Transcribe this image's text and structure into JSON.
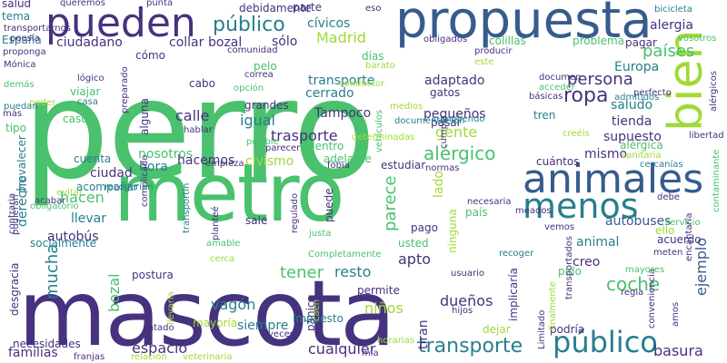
{
  "palette": {
    "background": "#ffffff",
    "purple": "#46327e",
    "teal": "#277f8e",
    "green": "#4ac16d",
    "lime": "#a0da39",
    "blue": "#365c8d"
  },
  "words": [
    {
      "text": "perro",
      "color": "#4ac16d"
    },
    {
      "text": "mascota",
      "color": "#46327e"
    },
    {
      "text": "metro",
      "color": "#4ac16d"
    },
    {
      "text": "propuesta",
      "color": "#365c8d"
    },
    {
      "text": "pueden",
      "color": "#46327e"
    },
    {
      "text": "animales",
      "color": "#365c8d"
    },
    {
      "text": "menos",
      "color": "#277f8e"
    },
    {
      "text": "bien",
      "color": "#a0da39"
    },
    {
      "text": "transporte",
      "color": "#277f8e"
    },
    {
      "text": "público",
      "color": "#277f8e"
    },
    {
      "text": "público",
      "color": "#277f8e"
    },
    {
      "text": "ciudadano",
      "color": "#46327e"
    },
    {
      "text": "collar",
      "color": "#46327e"
    },
    {
      "text": "bozal",
      "color": "#46327e"
    },
    {
      "text": "sólo",
      "color": "#46327e"
    },
    {
      "text": "cívicos",
      "color": "#277f8e"
    },
    {
      "text": "Madrid",
      "color": "#a0da39"
    },
    {
      "text": "países",
      "color": "#4ac16d"
    },
    {
      "text": "alergia",
      "color": "#46327e"
    },
    {
      "text": "bicicleta",
      "color": "#277f8e"
    },
    {
      "text": "ropa",
      "color": "#46327e"
    },
    {
      "text": "persona",
      "color": "#46327e"
    },
    {
      "text": "Europa",
      "color": "#277f8e"
    },
    {
      "text": "saludo",
      "color": "#277f8e"
    },
    {
      "text": "tienda",
      "color": "#46327e"
    },
    {
      "text": "supuesto",
      "color": "#46327e"
    },
    {
      "text": "mismo",
      "color": "#46327e"
    },
    {
      "text": "alérgica",
      "color": "#4ac16d"
    },
    {
      "text": "adaptado",
      "color": "#46327e"
    },
    {
      "text": "cerrado",
      "color": "#277f8e"
    },
    {
      "text": "calle",
      "color": "#46327e"
    },
    {
      "text": "igual",
      "color": "#277f8e"
    },
    {
      "text": "pequeños",
      "color": "#46327e"
    },
    {
      "text": "gente",
      "color": "#a0da39"
    },
    {
      "text": "trasporte",
      "color": "#46327e"
    },
    {
      "text": "alérgico",
      "color": "#4ac16d"
    },
    {
      "text": "civismo",
      "color": "#a0da39"
    },
    {
      "text": "hora",
      "color": "#277f8e"
    },
    {
      "text": "ciudad",
      "color": "#46327e"
    },
    {
      "text": "hacen",
      "color": "#4ac16d"
    },
    {
      "text": "llevar",
      "color": "#277f8e"
    },
    {
      "text": "autobús",
      "color": "#46327e"
    },
    {
      "text": "derecho",
      "color": "#277f8e"
    },
    {
      "text": "mucha",
      "color": "#277f8e"
    },
    {
      "text": "parece",
      "color": "#4ac16d"
    },
    {
      "text": "lado",
      "color": "#a0da39"
    },
    {
      "text": "ninguna",
      "color": "#a0da39"
    },
    {
      "text": "país",
      "color": "#4ac16d"
    },
    {
      "text": "animal",
      "color": "#277f8e"
    },
    {
      "text": "creo",
      "color": "#46327e"
    },
    {
      "text": "autobuses",
      "color": "#365c8d"
    },
    {
      "text": "ello",
      "color": "#a0da39"
    },
    {
      "text": "coche",
      "color": "#4ac16d"
    },
    {
      "text": "ejemplo",
      "color": "#365c8d"
    },
    {
      "text": "tener",
      "color": "#4ac16d"
    },
    {
      "text": "resto",
      "color": "#277f8e"
    },
    {
      "text": "apto",
      "color": "#46327e"
    },
    {
      "text": "vagón",
      "color": "#277f8e"
    },
    {
      "text": "niños",
      "color": "#a0da39"
    },
    {
      "text": "dueños",
      "color": "#46327e"
    },
    {
      "text": "espacio",
      "color": "#46327e"
    },
    {
      "text": "siempre",
      "color": "#277f8e"
    },
    {
      "text": "cualquier",
      "color": "#46327e"
    },
    {
      "text": "basura",
      "color": "#46327e"
    },
    {
      "text": "familias",
      "color": "#46327e"
    },
    {
      "text": "necesidades",
      "color": "#46327e"
    },
    {
      "text": "bozal",
      "color": "#4ac16d"
    },
    {
      "text": "postura",
      "color": "#46327e"
    },
    {
      "text": "tiran",
      "color": "#46327e"
    },
    {
      "text": "implicaría",
      "color": "#46327e"
    },
    {
      "text": "podría",
      "color": "#46327e"
    },
    {
      "text": "Tampoco",
      "color": "#46327e"
    },
    {
      "text": "nosotros",
      "color": "#4ac16d"
    },
    {
      "text": "hacemos",
      "color": "#46327e"
    },
    {
      "text": "cuenta",
      "color": "#277f8e"
    },
    {
      "text": "acompañar",
      "color": "#277f8e"
    },
    {
      "text": "socialmente",
      "color": "#277f8e"
    },
    {
      "text": "caso",
      "color": "#4ac16d"
    },
    {
      "text": "tipo",
      "color": "#4ac16d"
    },
    {
      "text": "viajar",
      "color": "#4ac16d"
    },
    {
      "text": "cabo",
      "color": "#46327e"
    },
    {
      "text": "cómo",
      "color": "#46327e"
    },
    {
      "text": "pelo",
      "color": "#4ac16d"
    },
    {
      "text": "días",
      "color": "#4ac16d"
    },
    {
      "text": "transporte",
      "color": "#277f8e"
    },
    {
      "text": "pagar",
      "color": "#46327e"
    },
    {
      "text": "problema",
      "color": "#4ac16d"
    },
    {
      "text": "colillas",
      "color": "#4ac16d"
    },
    {
      "text": "parte",
      "color": "#46327e"
    },
    {
      "text": "debidamente",
      "color": "#46327e"
    },
    {
      "text": "salud",
      "color": "#46327e"
    },
    {
      "text": "tema",
      "color": "#277f8e"
    },
    {
      "text": "España",
      "color": "#277f8e"
    },
    {
      "text": "eso",
      "color": "#46327e"
    },
    {
      "text": "sale",
      "color": "#46327e"
    },
    {
      "text": "pago",
      "color": "#46327e"
    },
    {
      "text": "puede",
      "color": "#46327e"
    },
    {
      "text": "usted",
      "color": "#4ac16d"
    },
    {
      "text": "permite",
      "color": "#46327e"
    },
    {
      "text": "pánico",
      "color": "#46327e"
    },
    {
      "text": "desgracia",
      "color": "#46327e"
    },
    {
      "text": "prevalecer",
      "color": "#277f8e"
    },
    {
      "text": "impuesto",
      "color": "#277f8e"
    },
    {
      "text": "mayoría",
      "color": "#a0da39"
    },
    {
      "text": "dejar",
      "color": "#a0da39"
    },
    {
      "text": "pasar",
      "color": "#46327e"
    },
    {
      "text": "tren",
      "color": "#277f8e"
    },
    {
      "text": "gatos",
      "color": "#46327e"
    },
    {
      "text": "dentro",
      "color": "#4ac16d"
    },
    {
      "text": "adelante",
      "color": "#4ac16d"
    },
    {
      "text": "estudiar",
      "color": "#46327e"
    },
    {
      "text": "cuántos",
      "color": "#46327e"
    },
    {
      "text": "grandes",
      "color": "#46327e"
    },
    {
      "text": "hablar",
      "color": "#46327e"
    },
    {
      "text": "alguna",
      "color": "#46327e"
    },
    {
      "text": "posible",
      "color": "#4ac16d"
    },
    {
      "text": "cumpla",
      "color": "#46327e"
    },
    {
      "text": "cumpliendo",
      "color": "#277f8e"
    },
    {
      "text": "acuerdo",
      "color": "#46327e"
    },
    {
      "text": "servicio",
      "color": "#4ac16d"
    },
    {
      "text": "debe",
      "color": "#46327e"
    },
    {
      "text": "pido",
      "color": "#4ac16d"
    },
    {
      "text": "transportados",
      "color": "#46327e"
    },
    {
      "text": "recoger",
      "color": "#277f8e"
    },
    {
      "text": "usuario",
      "color": "#46327e"
    },
    {
      "text": "hijos",
      "color": "#46327e"
    },
    {
      "text": "regla",
      "color": "#46327e"
    },
    {
      "text": "conveniencia",
      "color": "#46327e"
    },
    {
      "text": "atado",
      "color": "#46327e"
    },
    {
      "text": "veces",
      "color": "#46327e"
    },
    {
      "text": "franjas",
      "color": "#46327e"
    },
    {
      "text": "relación",
      "color": "#a0da39"
    },
    {
      "text": "veterinaria",
      "color": "#a0da39"
    },
    {
      "text": "horarias",
      "color": "#a0da39"
    },
    {
      "text": "Limitado",
      "color": "#46327e"
    },
    {
      "text": "mía",
      "color": "#46327e"
    },
    {
      "text": "caen",
      "color": "#a0da39"
    },
    {
      "text": "Completamente",
      "color": "#4ac16d"
    },
    {
      "text": "cerca",
      "color": "#a0da39"
    },
    {
      "text": "amable",
      "color": "#4ac16d"
    },
    {
      "text": "justa",
      "color": "#4ac16d"
    },
    {
      "text": "regulado",
      "color": "#46327e"
    },
    {
      "text": "complicado",
      "color": "#46327e"
    },
    {
      "text": "planteé",
      "color": "#46327e"
    },
    {
      "text": "transportín",
      "color": "#277f8e"
    },
    {
      "text": "recogerían",
      "color": "#277f8e"
    },
    {
      "text": "evitar",
      "color": "#a0da39"
    },
    {
      "text": "acabar",
      "color": "#46327e"
    },
    {
      "text": "contraria",
      "color": "#46327e"
    },
    {
      "text": "pudieran",
      "color": "#46327e"
    },
    {
      "text": "obligatorio",
      "color": "#4ac16d"
    },
    {
      "text": "empieza",
      "color": "#46327e"
    },
    {
      "text": "parecer",
      "color": "#46327e"
    },
    {
      "text": "fobia",
      "color": "#46327e"
    },
    {
      "text": "normas",
      "color": "#46327e"
    },
    {
      "text": "necesaria",
      "color": "#46327e"
    },
    {
      "text": "meados",
      "color": "#46327e"
    },
    {
      "text": "vemos",
      "color": "#46327e"
    },
    {
      "text": "meten",
      "color": "#46327e"
    },
    {
      "text": "mayores",
      "color": "#4ac16d"
    },
    {
      "text": "amos",
      "color": "#46327e"
    },
    {
      "text": "encantaría",
      "color": "#46327e"
    },
    {
      "text": "contaminante",
      "color": "#4ac16d"
    },
    {
      "text": "perfecto",
      "color": "#46327e"
    },
    {
      "text": "admitidos",
      "color": "#277f8e"
    },
    {
      "text": "básicas",
      "color": "#46327e"
    },
    {
      "text": "acceder",
      "color": "#4ac16d"
    },
    {
      "text": "documen",
      "color": "#46327e"
    },
    {
      "text": "cercanías",
      "color": "#277f8e"
    },
    {
      "text": "sanitaria",
      "color": "#a0da39"
    },
    {
      "text": "creéis",
      "color": "#a0da39"
    },
    {
      "text": "libertad",
      "color": "#46327e"
    },
    {
      "text": "alérgicos",
      "color": "#46327e"
    },
    {
      "text": "vosotros",
      "color": "#4ac16d"
    },
    {
      "text": "este",
      "color": "#a0da39"
    },
    {
      "text": "producir",
      "color": "#46327e"
    },
    {
      "text": "obligados",
      "color": "#46327e"
    },
    {
      "text": "barato",
      "color": "#a0da39"
    },
    {
      "text": "conductor",
      "color": "#a0da39"
    },
    {
      "text": "comunidad",
      "color": "#46327e"
    },
    {
      "text": "correa",
      "color": "#46327e"
    },
    {
      "text": "opción",
      "color": "#4ac16d"
    },
    {
      "text": "medios",
      "color": "#a0da39"
    },
    {
      "text": "documentación",
      "color": "#277f8e"
    },
    {
      "text": "vehículos",
      "color": "#4ac16d"
    },
    {
      "text": "determinadas",
      "color": "#a0da39"
    },
    {
      "text": "preparado",
      "color": "#46327e"
    },
    {
      "text": "poder",
      "color": "#a0da39"
    },
    {
      "text": "casa",
      "color": "#277f8e"
    },
    {
      "text": "lógico",
      "color": "#46327e"
    },
    {
      "text": "más",
      "color": "#46327e"
    },
    {
      "text": "puedan",
      "color": "#277f8e"
    },
    {
      "text": "demás",
      "color": "#4ac16d"
    },
    {
      "text": "Mónica",
      "color": "#46327e"
    },
    {
      "text": "proponga",
      "color": "#46327e"
    },
    {
      "text": "transportarnos",
      "color": "#46327e"
    },
    {
      "text": "queremos",
      "color": "#46327e"
    },
    {
      "text": "punta",
      "color": "#46327e"
    },
    {
      "text": "poesía",
      "color": "#46327e"
    },
    {
      "text": "finalmente",
      "color": "#a0da39"
    },
    {
      "text": "llevaría",
      "color": "#a0da39"
    }
  ]
}
